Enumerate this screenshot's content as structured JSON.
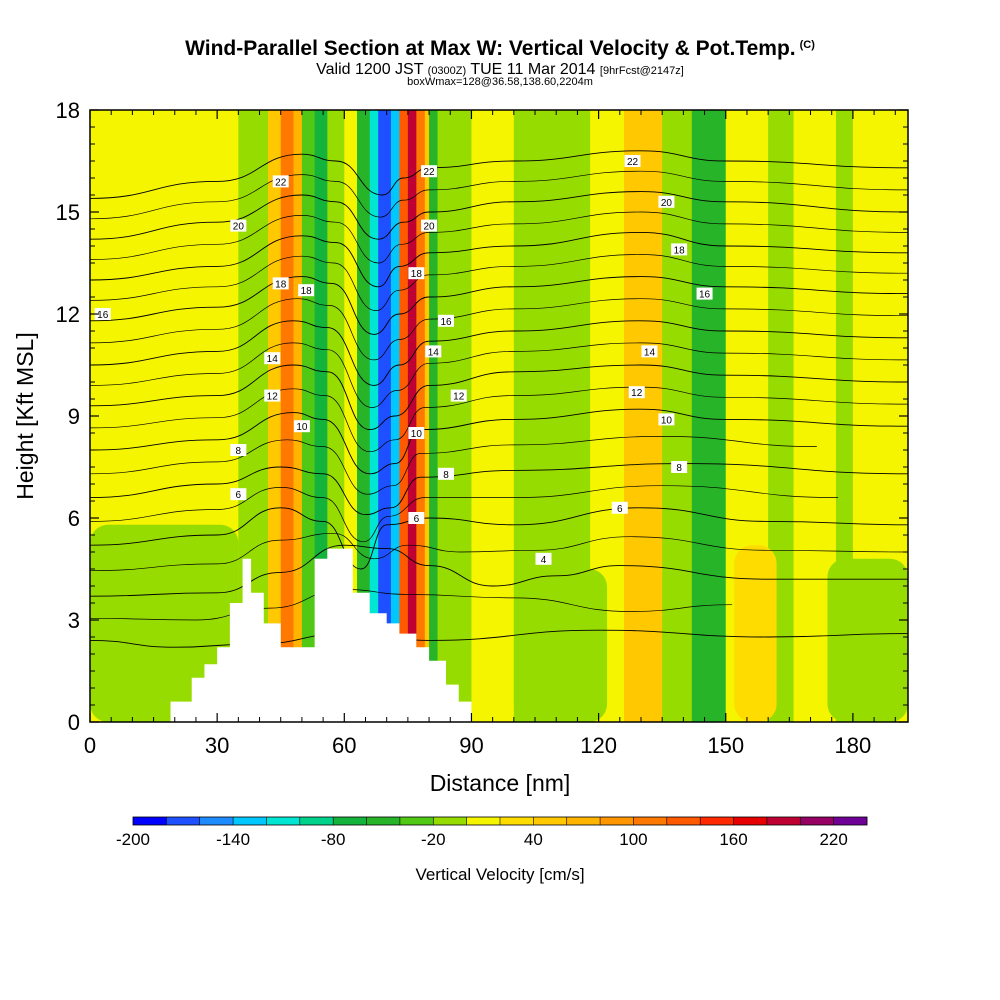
{
  "header": {
    "title": "Wind-Parallel Section at Max W: Vertical Velocity & Pot.Temp.",
    "copyright": "(C)",
    "valid_main": "Valid 1200 JST",
    "valid_utc": "(0300Z)",
    "valid_date": "TUE 11 Mar 2014",
    "valid_fcst": "[9hrFcst@2147z]",
    "box_line": "boxWmax=128@36.58,138.60,2204m"
  },
  "chart_data": {
    "type": "heatmap",
    "xlabel": "Distance [nm]",
    "ylabel": "Height [Kft MSL]",
    "xlim": [
      0,
      193
    ],
    "ylim": [
      0,
      18
    ],
    "x_ticks": [
      0,
      30,
      60,
      90,
      120,
      150,
      180
    ],
    "y_ticks": [
      0,
      3,
      6,
      9,
      12,
      15,
      18
    ],
    "colorbar": {
      "label": "Vertical Velocity [cm/s]",
      "tick_labels": [
        "-200",
        "-140",
        "-80",
        "-20",
        "40",
        "100",
        "160",
        "220"
      ],
      "levels": [
        -200,
        -180,
        -160,
        -140,
        -120,
        -100,
        -80,
        -60,
        -40,
        -20,
        0,
        20,
        40,
        60,
        80,
        100,
        120,
        140,
        160,
        180,
        200,
        220
      ],
      "colors": [
        "#0000ff",
        "#1e50ff",
        "#1e8cff",
        "#00c8ff",
        "#00e6d2",
        "#00d28c",
        "#14b43c",
        "#28b428",
        "#50c814",
        "#96dc00",
        "#f5f500",
        "#ffdc00",
        "#ffc800",
        "#ffb400",
        "#ff9600",
        "#ff7800",
        "#ff5a00",
        "#ff2800",
        "#e60000",
        "#be0032",
        "#960064",
        "#6e0096"
      ]
    },
    "bands": [
      {
        "x0": 0,
        "x1": 35,
        "w": 10
      },
      {
        "x0": 35,
        "x1": 42,
        "w": -15
      },
      {
        "x0": 42,
        "x1": 45,
        "w": 50
      },
      {
        "x0": 45,
        "x1": 48,
        "w": 110
      },
      {
        "x0": 48,
        "x1": 50,
        "w": 60
      },
      {
        "x0": 50,
        "x1": 53,
        "w": -40
      },
      {
        "x0": 53,
        "x1": 56,
        "w": -70
      },
      {
        "x0": 56,
        "x1": 60,
        "w": -15
      },
      {
        "x0": 60,
        "x1": 63,
        "w": 10
      },
      {
        "x0": 63,
        "x1": 66,
        "w": -60
      },
      {
        "x0": 66,
        "x1": 68,
        "w": -110
      },
      {
        "x0": 68,
        "x1": 71,
        "w": -170
      },
      {
        "x0": 71,
        "x1": 73,
        "w": -130
      },
      {
        "x0": 73,
        "x1": 75,
        "w": 130
      },
      {
        "x0": 75,
        "x1": 77,
        "w": 190
      },
      {
        "x0": 77,
        "x1": 79,
        "w": 110
      },
      {
        "x0": 79,
        "x1": 80,
        "w": 40
      },
      {
        "x0": 80,
        "x1": 82,
        "w": -50
      },
      {
        "x0": 82,
        "x1": 90,
        "w": -15
      },
      {
        "x0": 90,
        "x1": 100,
        "w": 10
      },
      {
        "x0": 100,
        "x1": 118,
        "w": -15
      },
      {
        "x0": 118,
        "x1": 126,
        "w": 10
      },
      {
        "x0": 126,
        "x1": 135,
        "w": 40
      },
      {
        "x0": 135,
        "x1": 142,
        "w": -15
      },
      {
        "x0": 142,
        "x1": 150,
        "w": -50
      },
      {
        "x0": 150,
        "x1": 160,
        "w": 10
      },
      {
        "x0": 160,
        "x1": 166,
        "w": -15
      },
      {
        "x0": 166,
        "x1": 176,
        "w": 10
      },
      {
        "x0": 176,
        "x1": 180,
        "w": -20
      },
      {
        "x0": 180,
        "x1": 193,
        "w": 10
      }
    ],
    "blobs": [
      {
        "x": 0,
        "y": 0,
        "w": 35,
        "h": 5.8,
        "v": -20
      },
      {
        "x": 100,
        "y": 0,
        "w": 22,
        "h": 4.5,
        "v": -20
      },
      {
        "x": 152,
        "y": 0,
        "w": 10,
        "h": 5.2,
        "v": 30
      },
      {
        "x": 174,
        "y": 0,
        "w": 19,
        "h": 4.8,
        "v": -20
      }
    ],
    "terrain": [
      [
        19,
        0.0,
        0.6
      ],
      [
        24,
        0.6,
        1.3
      ],
      [
        27,
        1.3,
        1.7
      ],
      [
        30,
        1.7,
        2.2
      ],
      [
        33,
        2.2,
        3.5
      ],
      [
        36,
        3.5,
        4.8
      ],
      [
        38,
        4.8,
        3.8
      ],
      [
        41,
        3.8,
        2.9
      ],
      [
        45,
        2.9,
        2.2
      ],
      [
        53,
        2.2,
        4.8
      ],
      [
        56,
        4.8,
        5.1
      ],
      [
        62,
        5.1,
        3.8
      ],
      [
        66,
        3.8,
        3.2
      ],
      [
        70,
        3.2,
        2.9
      ],
      [
        73,
        2.9,
        2.6
      ],
      [
        77,
        2.6,
        2.2
      ],
      [
        80,
        2.2,
        1.8
      ],
      [
        84,
        1.8,
        1.1
      ],
      [
        87,
        1.1,
        0.6
      ],
      [
        90,
        0.6,
        0.0
      ]
    ],
    "contour_levels": [
      4,
      6,
      8,
      10,
      12,
      14,
      16,
      18,
      20,
      22
    ],
    "contours": [
      {
        "level": 2,
        "points": [
          [
            0,
            2.4
          ],
          [
            20,
            2.2
          ],
          [
            40,
            2.3
          ],
          [
            60,
            2.6
          ],
          [
            80,
            2.4
          ],
          [
            120,
            2.7
          ],
          [
            160,
            2.5
          ],
          [
            193,
            2.6
          ]
        ]
      },
      {
        "level": 4,
        "points": [
          [
            0,
            3.7
          ],
          [
            30,
            3.8
          ],
          [
            45,
            4.4
          ],
          [
            60,
            5.2
          ],
          [
            70,
            5.1
          ],
          [
            80,
            4.6
          ],
          [
            95,
            4.0
          ],
          [
            110,
            4.3
          ],
          [
            125,
            4.6
          ],
          [
            160,
            4.2
          ],
          [
            193,
            4.2
          ]
        ]
      },
      {
        "level": 6,
        "points": [
          [
            0,
            5.2
          ],
          [
            30,
            5.5
          ],
          [
            45,
            6.3
          ],
          [
            55,
            5.9
          ],
          [
            64,
            4.5
          ],
          [
            70,
            5.8
          ],
          [
            80,
            6.0
          ],
          [
            100,
            5.8
          ],
          [
            130,
            6.3
          ],
          [
            160,
            5.9
          ],
          [
            193,
            5.8
          ]
        ]
      },
      {
        "level": 8,
        "points": [
          [
            0,
            6.6
          ],
          [
            30,
            7.0
          ],
          [
            45,
            7.5
          ],
          [
            55,
            7.3
          ],
          [
            65,
            6.1
          ],
          [
            71,
            6.3
          ],
          [
            78,
            7.2
          ],
          [
            100,
            7.4
          ],
          [
            140,
            7.6
          ],
          [
            193,
            7.3
          ]
        ]
      },
      {
        "level": 10,
        "points": [
          [
            0,
            8.0
          ],
          [
            30,
            8.3
          ],
          [
            48,
            9.1
          ],
          [
            55,
            8.9
          ],
          [
            66,
            7.3
          ],
          [
            72,
            7.6
          ],
          [
            78,
            8.6
          ],
          [
            100,
            8.9
          ],
          [
            130,
            9.2
          ],
          [
            150,
            8.9
          ],
          [
            193,
            8.7
          ]
        ]
      },
      {
        "level": 12,
        "points": [
          [
            0,
            9.3
          ],
          [
            30,
            9.6
          ],
          [
            48,
            10.5
          ],
          [
            56,
            10.3
          ],
          [
            66,
            8.6
          ],
          [
            72,
            9.0
          ],
          [
            80,
            9.9
          ],
          [
            100,
            10.3
          ],
          [
            130,
            10.5
          ],
          [
            150,
            10.2
          ],
          [
            193,
            10.0
          ]
        ]
      },
      {
        "level": 14,
        "points": [
          [
            0,
            10.5
          ],
          [
            30,
            10.9
          ],
          [
            48,
            11.8
          ],
          [
            56,
            11.6
          ],
          [
            67,
            9.9
          ],
          [
            73,
            10.5
          ],
          [
            80,
            11.2
          ],
          [
            100,
            11.5
          ],
          [
            130,
            11.8
          ],
          [
            150,
            11.5
          ],
          [
            193,
            11.3
          ]
        ]
      },
      {
        "level": 16,
        "points": [
          [
            0,
            11.8
          ],
          [
            30,
            12.2
          ],
          [
            50,
            13.1
          ],
          [
            57,
            12.9
          ],
          [
            67,
            11.4
          ],
          [
            73,
            12.0
          ],
          [
            80,
            12.5
          ],
          [
            100,
            12.8
          ],
          [
            130,
            13.1
          ],
          [
            150,
            12.8
          ],
          [
            193,
            12.6
          ]
        ]
      },
      {
        "level": 18,
        "points": [
          [
            0,
            13.0
          ],
          [
            30,
            13.4
          ],
          [
            50,
            14.3
          ],
          [
            58,
            14.1
          ],
          [
            68,
            12.8
          ],
          [
            73,
            13.4
          ],
          [
            80,
            13.8
          ],
          [
            100,
            14.0
          ],
          [
            130,
            14.4
          ],
          [
            150,
            14.0
          ],
          [
            193,
            13.8
          ]
        ]
      },
      {
        "level": 20,
        "points": [
          [
            0,
            14.2
          ],
          [
            30,
            14.7
          ],
          [
            50,
            15.5
          ],
          [
            58,
            15.3
          ],
          [
            68,
            14.2
          ],
          [
            74,
            14.7
          ],
          [
            80,
            15.0
          ],
          [
            100,
            15.3
          ],
          [
            130,
            15.6
          ],
          [
            150,
            15.3
          ],
          [
            193,
            15.0
          ]
        ]
      },
      {
        "level": 22,
        "points": [
          [
            0,
            15.4
          ],
          [
            30,
            15.9
          ],
          [
            50,
            16.7
          ],
          [
            58,
            16.5
          ],
          [
            69,
            15.5
          ],
          [
            74,
            16.0
          ],
          [
            80,
            16.3
          ],
          [
            100,
            16.5
          ],
          [
            130,
            16.8
          ],
          [
            150,
            16.5
          ],
          [
            193,
            16.3
          ]
        ]
      }
    ],
    "contour_labels": [
      {
        "text": "22",
        "x": 45,
        "y": 15.9
      },
      {
        "text": "22",
        "x": 80,
        "y": 16.2
      },
      {
        "text": "22",
        "x": 128,
        "y": 16.5
      },
      {
        "text": "20",
        "x": 35,
        "y": 14.6
      },
      {
        "text": "20",
        "x": 80,
        "y": 14.6
      },
      {
        "text": "20",
        "x": 136,
        "y": 15.3
      },
      {
        "text": "18",
        "x": 45,
        "y": 12.9
      },
      {
        "text": "18",
        "x": 51,
        "y": 12.7
      },
      {
        "text": "18",
        "x": 77,
        "y": 13.2
      },
      {
        "text": "18",
        "x": 139,
        "y": 13.9
      },
      {
        "text": "16",
        "x": 3,
        "y": 12.0
      },
      {
        "text": "16",
        "x": 84,
        "y": 11.8
      },
      {
        "text": "16",
        "x": 145,
        "y": 12.6
      },
      {
        "text": "14",
        "x": 43,
        "y": 10.7
      },
      {
        "text": "14",
        "x": 81,
        "y": 10.9
      },
      {
        "text": "14",
        "x": 132,
        "y": 10.9
      },
      {
        "text": "12",
        "x": 43,
        "y": 9.6
      },
      {
        "text": "12",
        "x": 87,
        "y": 9.6
      },
      {
        "text": "12",
        "x": 129,
        "y": 9.7
      },
      {
        "text": "10",
        "x": 50,
        "y": 8.7
      },
      {
        "text": "10",
        "x": 77,
        "y": 8.5
      },
      {
        "text": "10",
        "x": 136,
        "y": 8.9
      },
      {
        "text": "8",
        "x": 35,
        "y": 8.0
      },
      {
        "text": "8",
        "x": 84,
        "y": 7.3
      },
      {
        "text": "8",
        "x": 139,
        "y": 7.5
      },
      {
        "text": "6",
        "x": 35,
        "y": 6.7
      },
      {
        "text": "6",
        "x": 77,
        "y": 6.0
      },
      {
        "text": "6",
        "x": 125,
        "y": 6.3
      },
      {
        "text": "4",
        "x": 107,
        "y": 4.8
      }
    ]
  }
}
